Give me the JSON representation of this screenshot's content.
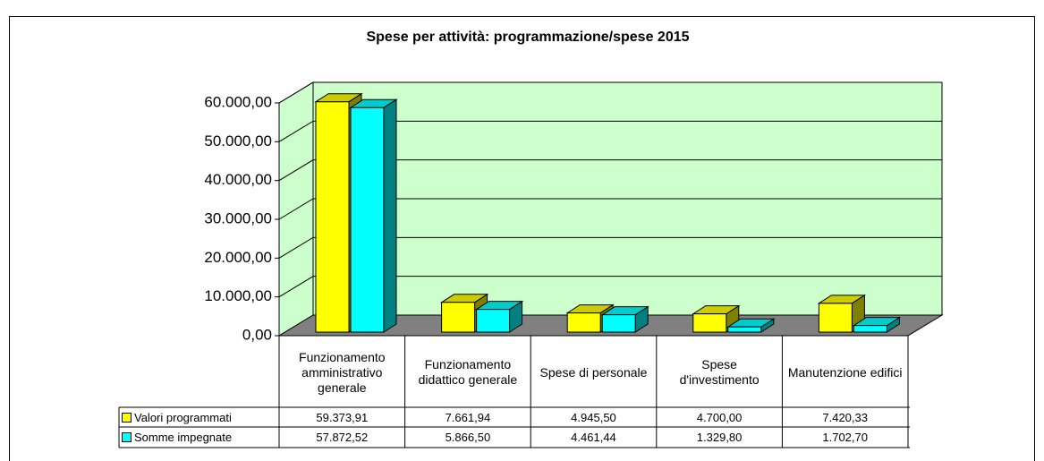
{
  "chart_data": {
    "type": "bar3d",
    "title": "Spese per attività: programmazione/spese 2015",
    "categories": [
      "Funzionamento amministrativo generale",
      "Funzionamento didattico generale",
      "Spese di personale",
      "Spese d'investimento",
      "Manutenzione edifici"
    ],
    "series": [
      {
        "name": "Valori programmati",
        "color": "#ffff00",
        "values": [
          59373.91,
          7661.94,
          4945.5,
          4700.0,
          7420.33
        ],
        "value_labels": [
          "59.373,91",
          "7.661,94",
          "4.945,50",
          "4.700,00",
          "7.420,33"
        ]
      },
      {
        "name": "Somme impegnate",
        "color": "#00ffff",
        "values": [
          57872.52,
          5866.5,
          4461.44,
          1329.8,
          1702.7
        ],
        "value_labels": [
          "57.872,52",
          "5.866,50",
          "4.461,44",
          "1.329,80",
          "1.702,70"
        ]
      }
    ],
    "ylim": [
      0,
      60000
    ],
    "yticks": [
      {
        "value": 0,
        "label": "0,00"
      },
      {
        "value": 10000,
        "label": "10.000,00"
      },
      {
        "value": 20000,
        "label": "20.000,00"
      },
      {
        "value": 30000,
        "label": "30.000,00"
      },
      {
        "value": 40000,
        "label": "40.000,00"
      },
      {
        "value": 50000,
        "label": "50.000,00"
      },
      {
        "value": 60000,
        "label": "60.000,00"
      }
    ],
    "grid": true,
    "wall_color": "#ccffcc",
    "floor_color": "#808080"
  }
}
